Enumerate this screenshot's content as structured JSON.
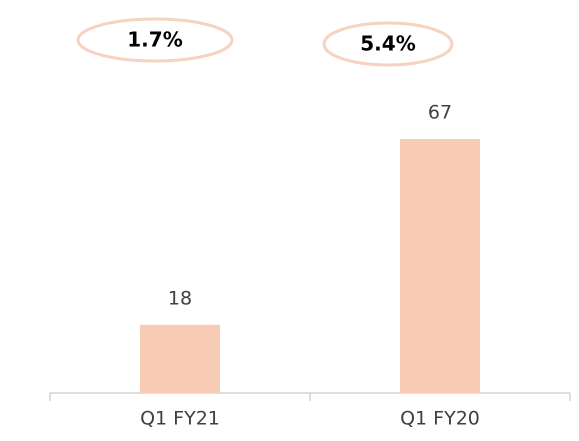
{
  "chart_data": {
    "type": "bar",
    "categories": [
      "Q1 FY21",
      "Q1 FY20"
    ],
    "values": [
      18,
      67
    ],
    "color": "#f8cbb4",
    "annotations": [
      "1.7%",
      "5.4%"
    ]
  }
}
